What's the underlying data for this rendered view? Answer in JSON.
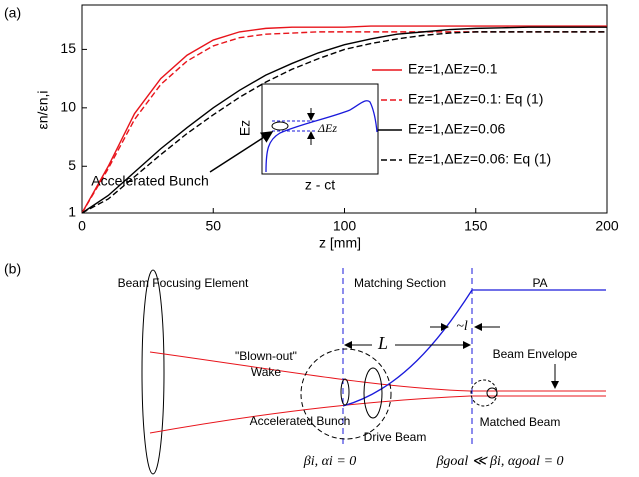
{
  "chart_data": {
    "type": "line",
    "panel_label": "(a)",
    "xlabel": "z [mm]",
    "ylabel": "εn/εn,i",
    "x": [
      0,
      10,
      20,
      30,
      40,
      50,
      60,
      70,
      80,
      90,
      100,
      110,
      120,
      130,
      140,
      150,
      160,
      170,
      180,
      190,
      200
    ],
    "xlim": [
      0,
      200
    ],
    "xticks": [
      0,
      50,
      100,
      150,
      200
    ],
    "ylim": [
      1,
      18.8
    ],
    "yticks": [
      1,
      5,
      10,
      15
    ],
    "legend": "right",
    "series": [
      {
        "name": "Ez=1,ΔEz=0.1",
        "color": "#e8141b",
        "linestyle": "solid",
        "values": [
          1,
          5,
          9.5,
          12.5,
          14.5,
          15.8,
          16.5,
          16.8,
          16.9,
          16.9,
          16.9,
          17,
          17,
          17,
          17,
          17,
          17,
          17,
          17,
          17,
          17
        ]
      },
      {
        "name": "Ez=1,ΔEz=0.1: Eq (1)",
        "color": "#e8141b",
        "linestyle": "dashed",
        "values": [
          1,
          4.8,
          9,
          12,
          14,
          15.3,
          16,
          16.3,
          16.4,
          16.5,
          16.5,
          16.5,
          16.5,
          16.5,
          16.5,
          16.5,
          16.5,
          16.5,
          16.5,
          16.5,
          16.5
        ]
      },
      {
        "name": "Ez=1,ΔEz=0.06",
        "color": "#000000",
        "linestyle": "solid",
        "values": [
          1,
          2.5,
          4.5,
          6.5,
          8.3,
          10,
          11.5,
          12.8,
          13.8,
          14.7,
          15.4,
          15.9,
          16.3,
          16.5,
          16.7,
          16.8,
          16.85,
          16.9,
          16.9,
          16.9,
          16.9
        ]
      },
      {
        "name": "Ez=1,ΔEz=0.06: Eq (1)",
        "color": "#000000",
        "linestyle": "dashed",
        "values": [
          1,
          2.2,
          4.1,
          6,
          7.8,
          9.4,
          10.9,
          12.2,
          13.3,
          14.2,
          15,
          15.5,
          15.9,
          16.2,
          16.4,
          16.5,
          16.5,
          16.5,
          16.5,
          16.5,
          16.5
        ]
      }
    ],
    "inset": {
      "ylabel": "Ez",
      "xlabel": "z - ct",
      "delta_label": "ΔEz"
    },
    "annotation": "Accelerated Bunch"
  },
  "diagram": {
    "panel_label": "(b)",
    "labels": {
      "focusing": "Beam Focusing Element",
      "wake_1": "\"Blown-out\"",
      "wake_2": "Wake",
      "matching": "Matching Section",
      "pa": "PA",
      "l": "~l",
      "L": "L",
      "envelope": "Beam Envelope",
      "bunch": "Accelerated Bunch",
      "drive": "Drive Beam",
      "matched": "Matched Beam",
      "initial": "βi, αi = 0",
      "goal": "βgoal ≪ βi, αgoal = 0"
    }
  }
}
